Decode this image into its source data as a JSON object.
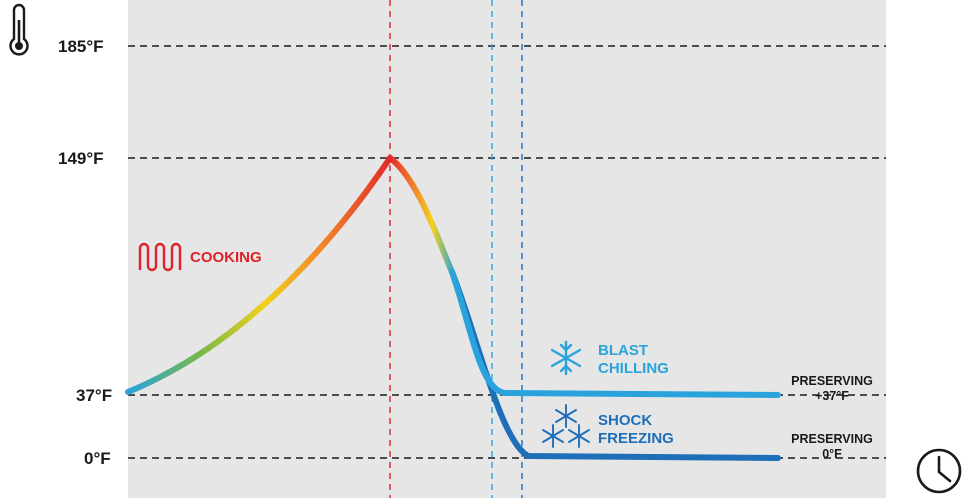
{
  "colors": {
    "panel_bg": "#e6e6e6",
    "cooking": "#e0202a",
    "chilling": "#2aa3dc",
    "freezing": "#1f6fb8",
    "text": "#1a1a1a"
  },
  "icons": {
    "temperature": "thermometer-icon",
    "time": "clock-icon",
    "cooking": "heating-element-icon",
    "chilling": "snowflake-icon",
    "freezing": "snowflakes-icon"
  },
  "y_axis_labels": [
    "185°F",
    "149°F",
    "37°F",
    "0°F"
  ],
  "phases": {
    "cooking": "COOKING",
    "blast_line1": "BLAST",
    "blast_line2": "CHILLING",
    "shock_line1": "SHOCK",
    "shock_line2": "FREEZING"
  },
  "preserving": {
    "chilled_line1": "PRESERVING",
    "chilled_line2": "+37°F",
    "frozen_line1": "PRESERVING",
    "frozen_line2": "0°F"
  }
}
